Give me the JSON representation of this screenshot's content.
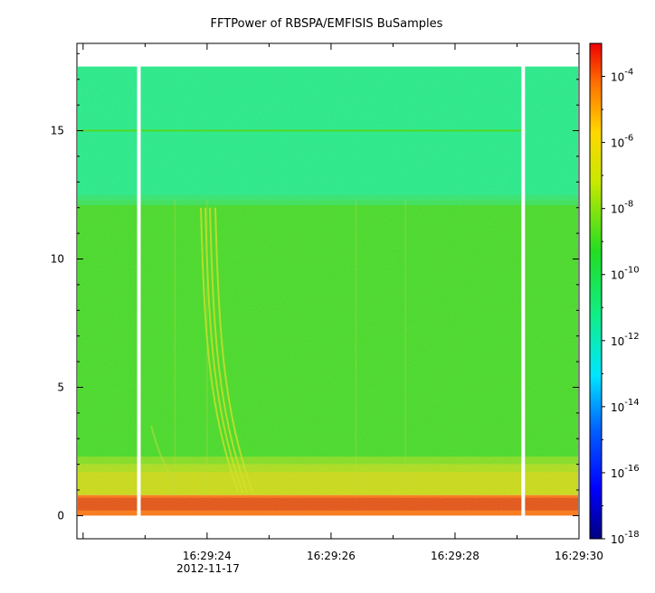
{
  "chart_data": {
    "type": "heatmap",
    "title": "FFTPower of RBSPA/EMFISIS  BuSamples",
    "xlabel": "",
    "ylabel": "",
    "x_tick_labels": [
      "16:29:24",
      "16:29:26",
      "16:29:28",
      "16:29:30"
    ],
    "x_tick_values_seconds": [
      24,
      26,
      28,
      30
    ],
    "x_date_label": "2012-11-17",
    "y_tick_labels": [
      "0",
      "5",
      "10",
      "15"
    ],
    "y_tick_values": [
      0,
      5,
      10,
      15
    ],
    "xlim_seconds": [
      21.9,
      30.0
    ],
    "ylim": [
      -0.9,
      18.4
    ],
    "data_extent": {
      "y_max": 17.5,
      "data_gaps_seconds": [
        22.9,
        29.1
      ]
    },
    "colorbar": {
      "scale": "log",
      "range": [
        1e-18,
        0.001
      ],
      "labels": [
        {
          "base": "10",
          "exp": "-4"
        },
        {
          "base": "10",
          "exp": "-6"
        },
        {
          "base": "10",
          "exp": "-8"
        },
        {
          "base": "10",
          "exp": "-10"
        },
        {
          "base": "10",
          "exp": "-12"
        },
        {
          "base": "10",
          "exp": "-14"
        },
        {
          "base": "10",
          "exp": "-16"
        },
        {
          "base": "10",
          "exp": "-18"
        }
      ],
      "label_values_log10": [
        -4,
        -6,
        -8,
        -10,
        -12,
        -14,
        -16,
        -18
      ]
    },
    "regions": [
      {
        "y_range": [
          12.3,
          17.5
        ],
        "log10_power": -11.5,
        "description_color": "#22ee88"
      },
      {
        "y_range": [
          2.0,
          12.3
        ],
        "log10_power": -10.0,
        "description_color": "#44dd22"
      },
      {
        "y_range": [
          0.8,
          2.0
        ],
        "log10_power": -8.8,
        "description_color": "#ccdd11"
      },
      {
        "y_range": [
          0.0,
          0.8
        ],
        "log10_power": -7.0,
        "description_color": "#ff7711"
      }
    ],
    "features": [
      {
        "kind": "horizontal_line",
        "y": 15.0,
        "log10_power": -10
      },
      {
        "kind": "chorus_arc",
        "x_start_seconds": 23.9,
        "y_top": 12.0,
        "x_end_seconds": 24.5,
        "y_bottom": 0.9
      }
    ]
  }
}
